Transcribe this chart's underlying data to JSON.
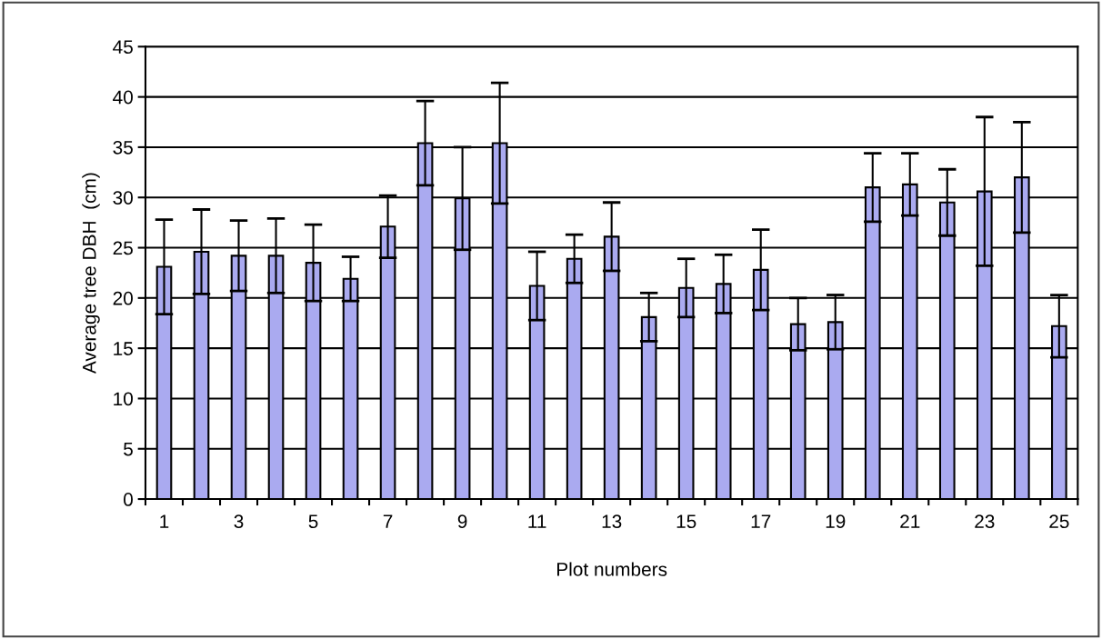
{
  "chart_data": {
    "type": "bar",
    "xlabel": "Plot numbers",
    "ylabel": "Average tree DBH  (cm)",
    "categories": [
      "1",
      null,
      "3",
      null,
      "5",
      null,
      "7",
      null,
      "9",
      null,
      "11",
      null,
      "13",
      null,
      "15",
      null,
      "17",
      null,
      "19",
      null,
      "21",
      null,
      "23",
      null,
      "25"
    ],
    "values": [
      23.1,
      24.6,
      24.2,
      24.2,
      23.5,
      21.9,
      27.1,
      35.4,
      29.9,
      35.4,
      21.2,
      23.9,
      26.1,
      18.1,
      21.0,
      21.4,
      22.8,
      17.4,
      17.6,
      31.0,
      31.3,
      29.5,
      30.6,
      32.0,
      17.2
    ],
    "errors": [
      4.7,
      4.2,
      3.5,
      3.7,
      3.8,
      2.2,
      3.1,
      4.2,
      5.1,
      6.0,
      3.4,
      2.4,
      3.4,
      2.4,
      2.9,
      2.9,
      4.0,
      2.6,
      2.7,
      3.4,
      3.1,
      3.3,
      7.4,
      5.5,
      3.1
    ],
    "color": "#aaaaf0",
    "ylim": [
      0,
      45
    ],
    "yticks": [
      0,
      5,
      10,
      15,
      20,
      25,
      30,
      35,
      40,
      45
    ],
    "grid": "y"
  }
}
